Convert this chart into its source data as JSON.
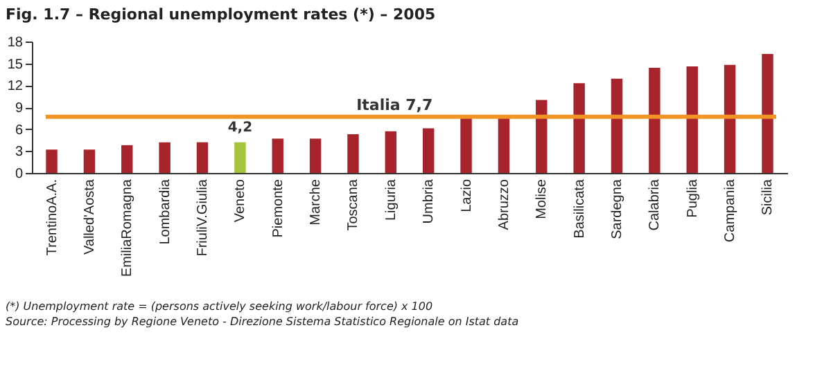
{
  "chart_data": {
    "type": "bar",
    "title": "Fig. 1.7 – Regional unemployment rates (*) – 2005",
    "categories": [
      "TrentinoA.A.",
      "Valled'Aosta",
      "EmiliaRomagna",
      "Lombardia",
      "FriuliV.Giulia",
      "Veneto",
      "Piemonte",
      "Marche",
      "Toscana",
      "Liguria",
      "Umbria",
      "Lazio",
      "Abruzzo",
      "Molise",
      "Basilicata",
      "Sardegna",
      "Calabria",
      "Puglia",
      "Campania",
      "Sicilia"
    ],
    "values": [
      3.2,
      3.2,
      3.8,
      4.2,
      4.2,
      4.2,
      4.7,
      4.7,
      5.3,
      5.7,
      6.1,
      7.5,
      7.5,
      10.0,
      12.3,
      12.9,
      14.4,
      14.6,
      14.8,
      16.3
    ],
    "colors": [
      "#a8242c",
      "#a8242c",
      "#a8242c",
      "#a8242c",
      "#a8242c",
      "#a4c43c",
      "#a8242c",
      "#a8242c",
      "#a8242c",
      "#a8242c",
      "#a8242c",
      "#a8242c",
      "#a8242c",
      "#a8242c",
      "#a8242c",
      "#a8242c",
      "#a8242c",
      "#a8242c",
      "#a8242c",
      "#a8242c"
    ],
    "value_labels": [
      null,
      null,
      null,
      null,
      null,
      "4,2",
      null,
      null,
      null,
      null,
      null,
      null,
      null,
      null,
      null,
      null,
      null,
      null,
      null,
      null
    ],
    "ylim": [
      0,
      18
    ],
    "yticks": [
      0,
      3,
      6,
      9,
      12,
      15,
      18
    ],
    "grid": false,
    "ref_lines": [
      {
        "axis": "y",
        "value": 7.7,
        "label": "Italia  7,7",
        "color": "#f29325"
      }
    ],
    "annotations": [
      "(*) Unemployment rate = (persons actively seeking work/labour force) x 100",
      "Source: Processing by Regione Veneto - Direzione Sistema Statistico Regionale on Istat data"
    ]
  }
}
